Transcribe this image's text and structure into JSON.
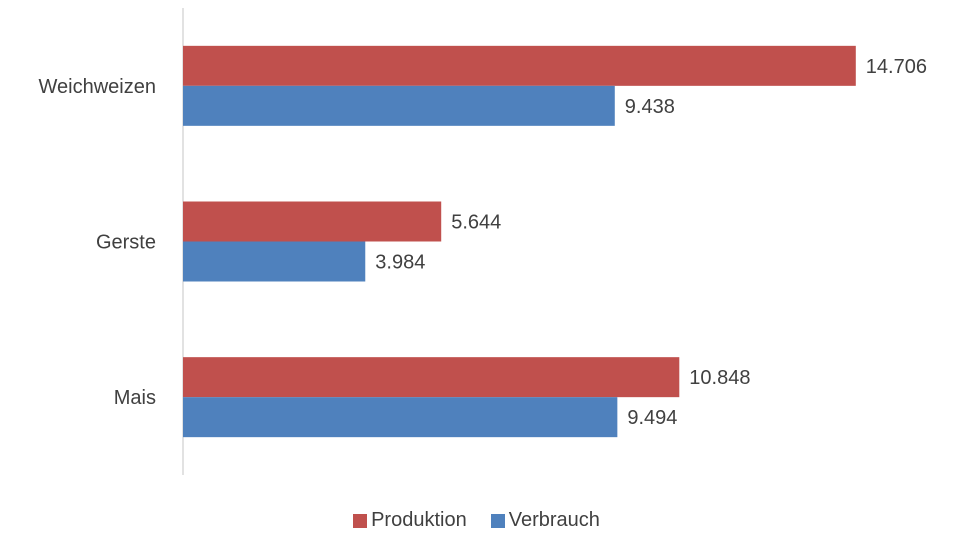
{
  "chart_data": {
    "type": "bar",
    "orientation": "horizontal",
    "categories": [
      "Weichweizen",
      "Gerste",
      "Mais"
    ],
    "series": [
      {
        "name": "Produktion",
        "color": "#C0504D",
        "values": [
          14706,
          5644,
          10848
        ],
        "labels": [
          "14.706",
          "5.644",
          "10.848"
        ]
      },
      {
        "name": "Verbrauch",
        "color": "#4F81BD",
        "values": [
          9438,
          3984,
          9494
        ],
        "labels": [
          "9.438",
          "3.984",
          "9.494"
        ]
      }
    ],
    "title": "",
    "xlabel": "",
    "ylabel": "",
    "xlim": [
      0,
      16000
    ],
    "grid": false,
    "legend_position": "bottom"
  }
}
